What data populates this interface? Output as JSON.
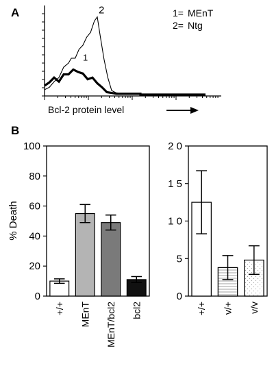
{
  "panels": {
    "a_label": "A",
    "b_label": "B"
  },
  "chart_data": [
    {
      "type": "line",
      "panel": "A",
      "title": "",
      "xlabel": "Bcl-2 protein level",
      "ylabel": "",
      "log_x": true,
      "x_arrow": true,
      "legend": [
        {
          "key": "1=",
          "label": "MEnT"
        },
        {
          "key": "2=",
          "label": "Ntg"
        }
      ],
      "legend_position": "top-right",
      "series": [
        {
          "name": "1",
          "style": "thick",
          "x": [
            0,
            0.05,
            0.1,
            0.15,
            0.2,
            0.25,
            0.3,
            0.35,
            0.4,
            0.45,
            0.5,
            0.55,
            0.6,
            0.65,
            0.7,
            0.75,
            0.8,
            0.85,
            0.9,
            0.95,
            1.0
          ],
          "y": [
            0.1,
            0.16,
            0.2,
            0.17,
            0.24,
            0.26,
            0.3,
            0.29,
            0.25,
            0.2,
            0.2,
            0.15,
            0.08,
            0.04,
            0.02,
            0.01,
            0.01,
            0.01,
            0.01,
            0.01,
            0.01
          ]
        },
        {
          "name": "2",
          "style": "thin",
          "x": [
            0,
            0.05,
            0.1,
            0.15,
            0.2,
            0.25,
            0.28,
            0.32,
            0.36,
            0.4,
            0.44,
            0.48,
            0.52,
            0.55,
            0.58,
            0.62,
            0.66,
            0.7,
            0.75,
            0.8,
            0.85,
            0.9,
            1.0
          ],
          "y": [
            0.05,
            0.1,
            0.15,
            0.22,
            0.33,
            0.4,
            0.44,
            0.46,
            0.55,
            0.62,
            0.7,
            0.78,
            0.9,
            0.97,
            0.72,
            0.45,
            0.2,
            0.06,
            0.02,
            0.01,
            0.01,
            0.01,
            0.01
          ]
        }
      ],
      "peak_labels": [
        "1",
        "2"
      ]
    },
    {
      "type": "bar",
      "panel": "B-left",
      "ylabel": "% Death",
      "ylim": [
        0,
        100
      ],
      "yticks": [
        0,
        20,
        40,
        60,
        80,
        100
      ],
      "categories": [
        "+/+",
        "MEnT",
        "MEnT/bcl2",
        "bcl2"
      ],
      "values": [
        10,
        55,
        49,
        11
      ],
      "errors": [
        1.5,
        6,
        5,
        2
      ],
      "fills": [
        "#ffffff",
        "#b4b4b4",
        "#7a7a7a",
        "#111111"
      ]
    },
    {
      "type": "bar",
      "panel": "B-right",
      "ylabel": "",
      "ylim": [
        0,
        20
      ],
      "yticks": [
        0,
        5,
        10,
        15,
        20
      ],
      "ytick_labels": [
        "0",
        "5",
        "1 0",
        "1 5",
        "2 0"
      ],
      "categories": [
        "+/+",
        "v/+",
        "v/v"
      ],
      "values": [
        12.5,
        3.8,
        4.8
      ],
      "errors": [
        4.2,
        1.6,
        1.9
      ],
      "fills": [
        "#ffffff",
        "hatch-horizontal",
        "stipple"
      ]
    }
  ]
}
